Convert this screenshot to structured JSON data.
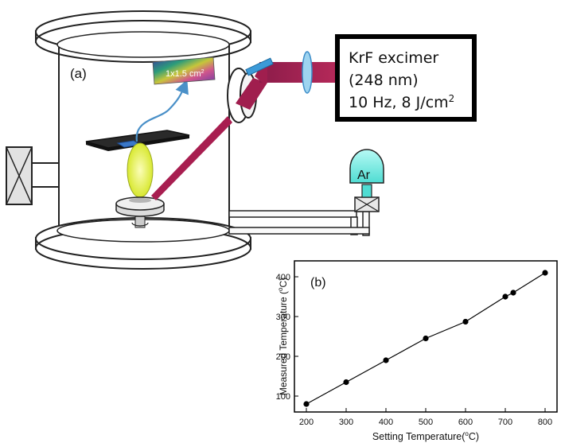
{
  "diagram": {
    "panel_a_label": "(a)",
    "sample_label": "1x1.5 cm",
    "sample_label_sup": "2",
    "laser": {
      "line1": "KrF excimer",
      "line2": "(248 nm)",
      "line3_prefix": "10 Hz, 8 J/cm",
      "line3_sup": "2"
    },
    "gas_label": "Ar"
  },
  "chart_data": {
    "type": "line",
    "panel_label": "(b)",
    "xlabel_prefix": "Setting Temperature(",
    "xlabel_sup": "o",
    "xlabel_suffix": "C)",
    "ylabel_prefix": "Measured Temperature (",
    "ylabel_sup": "o",
    "ylabel_suffix": "C)",
    "xlim": [
      170,
      830
    ],
    "ylim": [
      60,
      440
    ],
    "xticks": [
      200,
      300,
      400,
      500,
      600,
      700,
      800
    ],
    "yticks": [
      100,
      200,
      300,
      400
    ],
    "x": [
      200,
      300,
      400,
      500,
      600,
      700,
      720,
      800
    ],
    "y": [
      80,
      135,
      190,
      245,
      287,
      350,
      360,
      410
    ]
  }
}
